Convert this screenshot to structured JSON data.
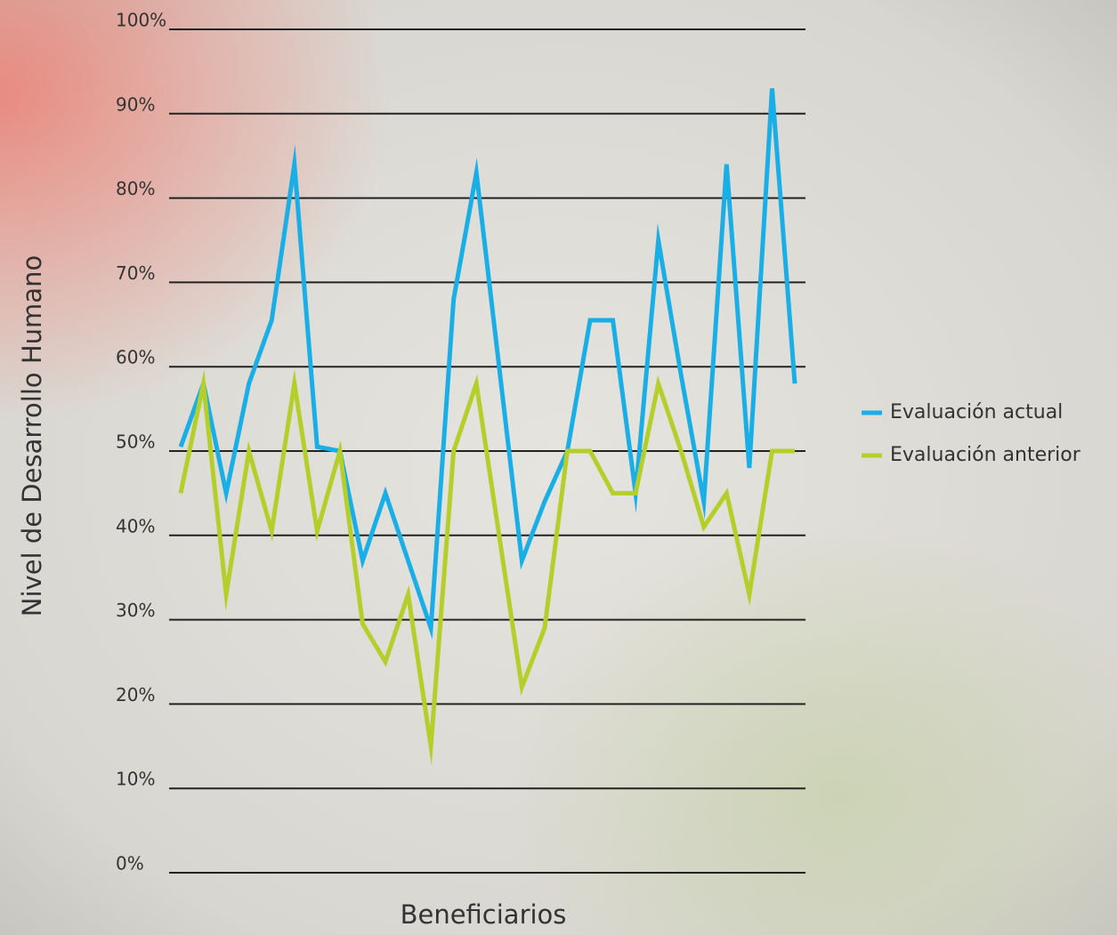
{
  "chart_data": {
    "type": "line",
    "xlabel": "Beneficiarios",
    "ylabel": "Nivel de Desarrollo Humano",
    "categories": [
      null,
      null,
      null,
      null,
      null,
      null,
      null,
      null,
      null,
      null,
      null,
      null,
      null,
      null,
      null,
      null,
      null,
      null,
      null,
      null,
      null,
      null,
      null,
      null,
      null,
      null,
      null,
      null
    ],
    "series": [
      {
        "name": "Evaluación actual",
        "color": "#1aaee6",
        "values": [
          50.5,
          58,
          45,
          58,
          65.5,
          84,
          50.5,
          50,
          37,
          45,
          37,
          29,
          68,
          83,
          60,
          37,
          44,
          50,
          65.5,
          65.5,
          45,
          75,
          59,
          44,
          84,
          48,
          93,
          58
        ]
      },
      {
        "name": "Evaluación anterior",
        "color": "#b5cf2a",
        "values": [
          45,
          58,
          33,
          50,
          40.5,
          58,
          40.5,
          50,
          29.5,
          25,
          33,
          15,
          50,
          58,
          40,
          22,
          29,
          50,
          50,
          45,
          45,
          58,
          50,
          41,
          45,
          33,
          50,
          50
        ]
      }
    ],
    "ylim": [
      0,
      100
    ],
    "yticks": [
      {
        "value": 0,
        "label": "0%"
      },
      {
        "value": 10,
        "label": "10%"
      },
      {
        "value": 20,
        "label": "20%"
      },
      {
        "value": 30,
        "label": "30%"
      },
      {
        "value": 40,
        "label": "40%"
      },
      {
        "value": 50,
        "label": "50%"
      },
      {
        "value": 60,
        "label": "60%"
      },
      {
        "value": 70,
        "label": "70%"
      },
      {
        "value": 80,
        "label": "80%"
      },
      {
        "value": 90,
        "label": "90%"
      },
      {
        "value": 100,
        "label": "100%"
      }
    ],
    "grid": true,
    "legend": "right"
  }
}
